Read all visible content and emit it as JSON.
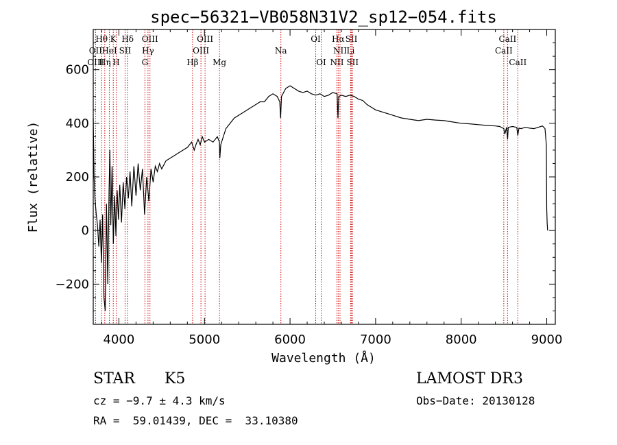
{
  "chart_data": {
    "type": "line",
    "title": "spec−56321−VB058N31V2_sp12−054.fits",
    "xlabel": "Wavelength (Å)",
    "ylabel": "Flux (relative)",
    "xlim": [
      3700,
      9100
    ],
    "ylim": [
      -350,
      750
    ],
    "x_ticks": [
      4000,
      5000,
      6000,
      7000,
      8000,
      9000
    ],
    "y_ticks": [
      -200,
      0,
      200,
      400,
      600
    ],
    "y_tick_labels": [
      "−200",
      "0",
      "200",
      "400",
      "600"
    ],
    "series": [
      {
        "name": "spectrum",
        "points": [
          [
            3700,
            420
          ],
          [
            3710,
            200
          ],
          [
            3720,
            120
          ],
          [
            3735,
            60
          ],
          [
            3750,
            20
          ],
          [
            3765,
            -60
          ],
          [
            3780,
            40
          ],
          [
            3795,
            -120
          ],
          [
            3810,
            60
          ],
          [
            3825,
            -250
          ],
          [
            3840,
            -300
          ],
          [
            3855,
            100
          ],
          [
            3870,
            -200
          ],
          [
            3885,
            150
          ],
          [
            3895,
            300
          ],
          [
            3905,
            20
          ],
          [
            3920,
            240
          ],
          [
            3935,
            -50
          ],
          [
            3950,
            130
          ],
          [
            3965,
            -20
          ],
          [
            3980,
            150
          ],
          [
            3995,
            40
          ],
          [
            4010,
            170
          ],
          [
            4030,
            30
          ],
          [
            4050,
            180
          ],
          [
            4070,
            80
          ],
          [
            4090,
            200
          ],
          [
            4110,
            120
          ],
          [
            4130,
            220
          ],
          [
            4150,
            90
          ],
          [
            4175,
            240
          ],
          [
            4200,
            130
          ],
          [
            4225,
            250
          ],
          [
            4250,
            150
          ],
          [
            4275,
            230
          ],
          [
            4300,
            60
          ],
          [
            4325,
            200
          ],
          [
            4350,
            110
          ],
          [
            4375,
            230
          ],
          [
            4400,
            180
          ],
          [
            4425,
            240
          ],
          [
            4450,
            220
          ],
          [
            4475,
            250
          ],
          [
            4500,
            230
          ],
          [
            4550,
            260
          ],
          [
            4600,
            270
          ],
          [
            4650,
            280
          ],
          [
            4700,
            290
          ],
          [
            4750,
            300
          ],
          [
            4800,
            310
          ],
          [
            4850,
            330
          ],
          [
            4880,
            300
          ],
          [
            4900,
            320
          ],
          [
            4925,
            340
          ],
          [
            4950,
            320
          ],
          [
            4975,
            350
          ],
          [
            5000,
            330
          ],
          [
            5050,
            340
          ],
          [
            5100,
            330
          ],
          [
            5150,
            350
          ],
          [
            5175,
            330
          ],
          [
            5180,
            270
          ],
          [
            5190,
            320
          ],
          [
            5250,
            380
          ],
          [
            5300,
            400
          ],
          [
            5350,
            420
          ],
          [
            5400,
            430
          ],
          [
            5450,
            440
          ],
          [
            5500,
            450
          ],
          [
            5550,
            460
          ],
          [
            5600,
            470
          ],
          [
            5650,
            480
          ],
          [
            5700,
            480
          ],
          [
            5750,
            500
          ],
          [
            5800,
            510
          ],
          [
            5850,
            500
          ],
          [
            5880,
            480
          ],
          [
            5890,
            420
          ],
          [
            5900,
            500
          ],
          [
            5950,
            530
          ],
          [
            6000,
            540
          ],
          [
            6050,
            530
          ],
          [
            6100,
            520
          ],
          [
            6150,
            515
          ],
          [
            6200,
            520
          ],
          [
            6250,
            510
          ],
          [
            6300,
            505
          ],
          [
            6350,
            510
          ],
          [
            6400,
            500
          ],
          [
            6450,
            505
          ],
          [
            6500,
            515
          ],
          [
            6550,
            510
          ],
          [
            6560,
            420
          ],
          [
            6570,
            500
          ],
          [
            6600,
            505
          ],
          [
            6650,
            500
          ],
          [
            6700,
            505
          ],
          [
            6750,
            500
          ],
          [
            6800,
            490
          ],
          [
            6850,
            485
          ],
          [
            6900,
            470
          ],
          [
            6950,
            460
          ],
          [
            7000,
            450
          ],
          [
            7050,
            445
          ],
          [
            7100,
            440
          ],
          [
            7150,
            435
          ],
          [
            7200,
            430
          ],
          [
            7300,
            420
          ],
          [
            7400,
            415
          ],
          [
            7500,
            410
          ],
          [
            7600,
            415
          ],
          [
            7700,
            412
          ],
          [
            7800,
            410
          ],
          [
            7900,
            405
          ],
          [
            8000,
            400
          ],
          [
            8100,
            398
          ],
          [
            8200,
            395
          ],
          [
            8300,
            392
          ],
          [
            8400,
            390
          ],
          [
            8450,
            388
          ],
          [
            8498,
            380
          ],
          [
            8510,
            360
          ],
          [
            8530,
            385
          ],
          [
            8542,
            340
          ],
          [
            8550,
            385
          ],
          [
            8600,
            388
          ],
          [
            8650,
            385
          ],
          [
            8662,
            355
          ],
          [
            8675,
            382
          ],
          [
            8700,
            380
          ],
          [
            8750,
            385
          ],
          [
            8800,
            382
          ],
          [
            8850,
            380
          ],
          [
            8900,
            385
          ],
          [
            8950,
            390
          ],
          [
            8980,
            380
          ],
          [
            8995,
            320
          ],
          [
            9000,
            80
          ],
          [
            9005,
            30
          ],
          [
            9010,
            0
          ]
        ]
      }
    ],
    "spectral_lines": [
      {
        "label": "Hθ",
        "x": 3798,
        "row": 1
      },
      {
        "label": "K",
        "x": 3934,
        "row": 1
      },
      {
        "label": "Hδ",
        "x": 4102,
        "row": 1
      },
      {
        "label": "OIII",
        "x": 4363,
        "row": 1
      },
      {
        "label": "OIII",
        "x": 5007,
        "row": 1
      },
      {
        "label": "OI",
        "x": 6300,
        "row": 1
      },
      {
        "label": "Hα",
        "x": 6563,
        "row": 1
      },
      {
        "label": "SII",
        "x": 6717,
        "row": 1
      },
      {
        "label": "CaII",
        "x": 8542,
        "row": 1
      },
      {
        "label": "OII",
        "x": 3727,
        "row": 2
      },
      {
        "label": "HeI",
        "x": 3889,
        "row": 2
      },
      {
        "label": "SII",
        "x": 4072,
        "row": 2
      },
      {
        "label": "Hγ",
        "x": 4340,
        "row": 2
      },
      {
        "label": "OIII",
        "x": 4959,
        "row": 2
      },
      {
        "label": "Na",
        "x": 5893,
        "row": 2
      },
      {
        "label": "NII",
        "x": 6584,
        "row": 2
      },
      {
        "label": "Li",
        "x": 6708,
        "row": 2
      },
      {
        "label": "CaII",
        "x": 8498,
        "row": 2
      },
      {
        "label": "OIII",
        "x": 3727,
        "row": 3
      },
      {
        "label": "Hη",
        "x": 3835,
        "row": 3
      },
      {
        "label": "H",
        "x": 3968,
        "row": 3
      },
      {
        "label": "G",
        "x": 4304,
        "row": 3
      },
      {
        "label": "Hβ",
        "x": 4861,
        "row": 3
      },
      {
        "label": "Mg",
        "x": 5175,
        "row": 3
      },
      {
        "label": "OI",
        "x": 6364,
        "row": 3
      },
      {
        "label": "NII",
        "x": 6548,
        "row": 3
      },
      {
        "label": "SII",
        "x": 6731,
        "row": 3
      },
      {
        "label": "CaII",
        "x": 8662,
        "row": 3
      }
    ]
  },
  "info": {
    "object_class": "STAR",
    "subclass": "K5",
    "cz": "cz = −9.7 ± 4.3 km/s",
    "coords": "RA =  59.01439, DEC =  33.10380",
    "survey": "LAMOST DR3",
    "obs_date": "Obs−Date: 20130128"
  },
  "colors": {
    "line_marker": "#cc0000",
    "spectrum": "#000000",
    "axis": "#000000"
  }
}
